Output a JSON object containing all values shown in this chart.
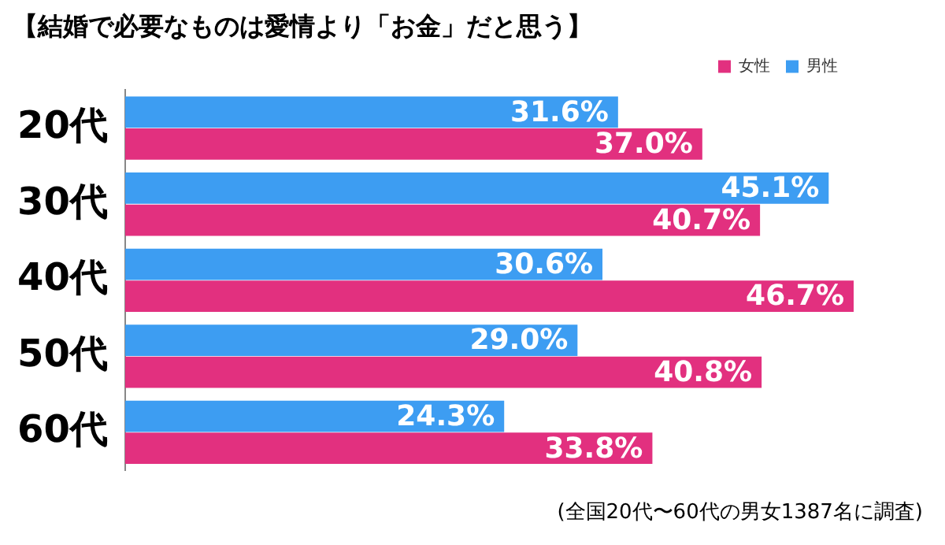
{
  "chart_data": {
    "type": "bar",
    "orientation": "horizontal",
    "title": "【結婚で必要なものは愛情より「お金」だと思う】",
    "categories": [
      "20代",
      "30代",
      "40代",
      "50代",
      "60代"
    ],
    "series": [
      {
        "name": "男性",
        "color": "#3d9df2",
        "values": [
          31.6,
          45.1,
          30.6,
          29.0,
          24.3
        ],
        "value_labels": [
          "31.6%",
          "45.1%",
          "30.6%",
          "29.0%",
          "24.3%"
        ]
      },
      {
        "name": "女性",
        "color": "#e2307f",
        "values": [
          37.0,
          40.7,
          46.7,
          40.8,
          33.8
        ],
        "value_labels": [
          "37.0%",
          "40.7%",
          "46.7%",
          "40.8%",
          "33.8%"
        ]
      }
    ],
    "legend": "top right",
    "annotations": [
      "(全国20代〜60代の男女1387名に調査)"
    ]
  }
}
